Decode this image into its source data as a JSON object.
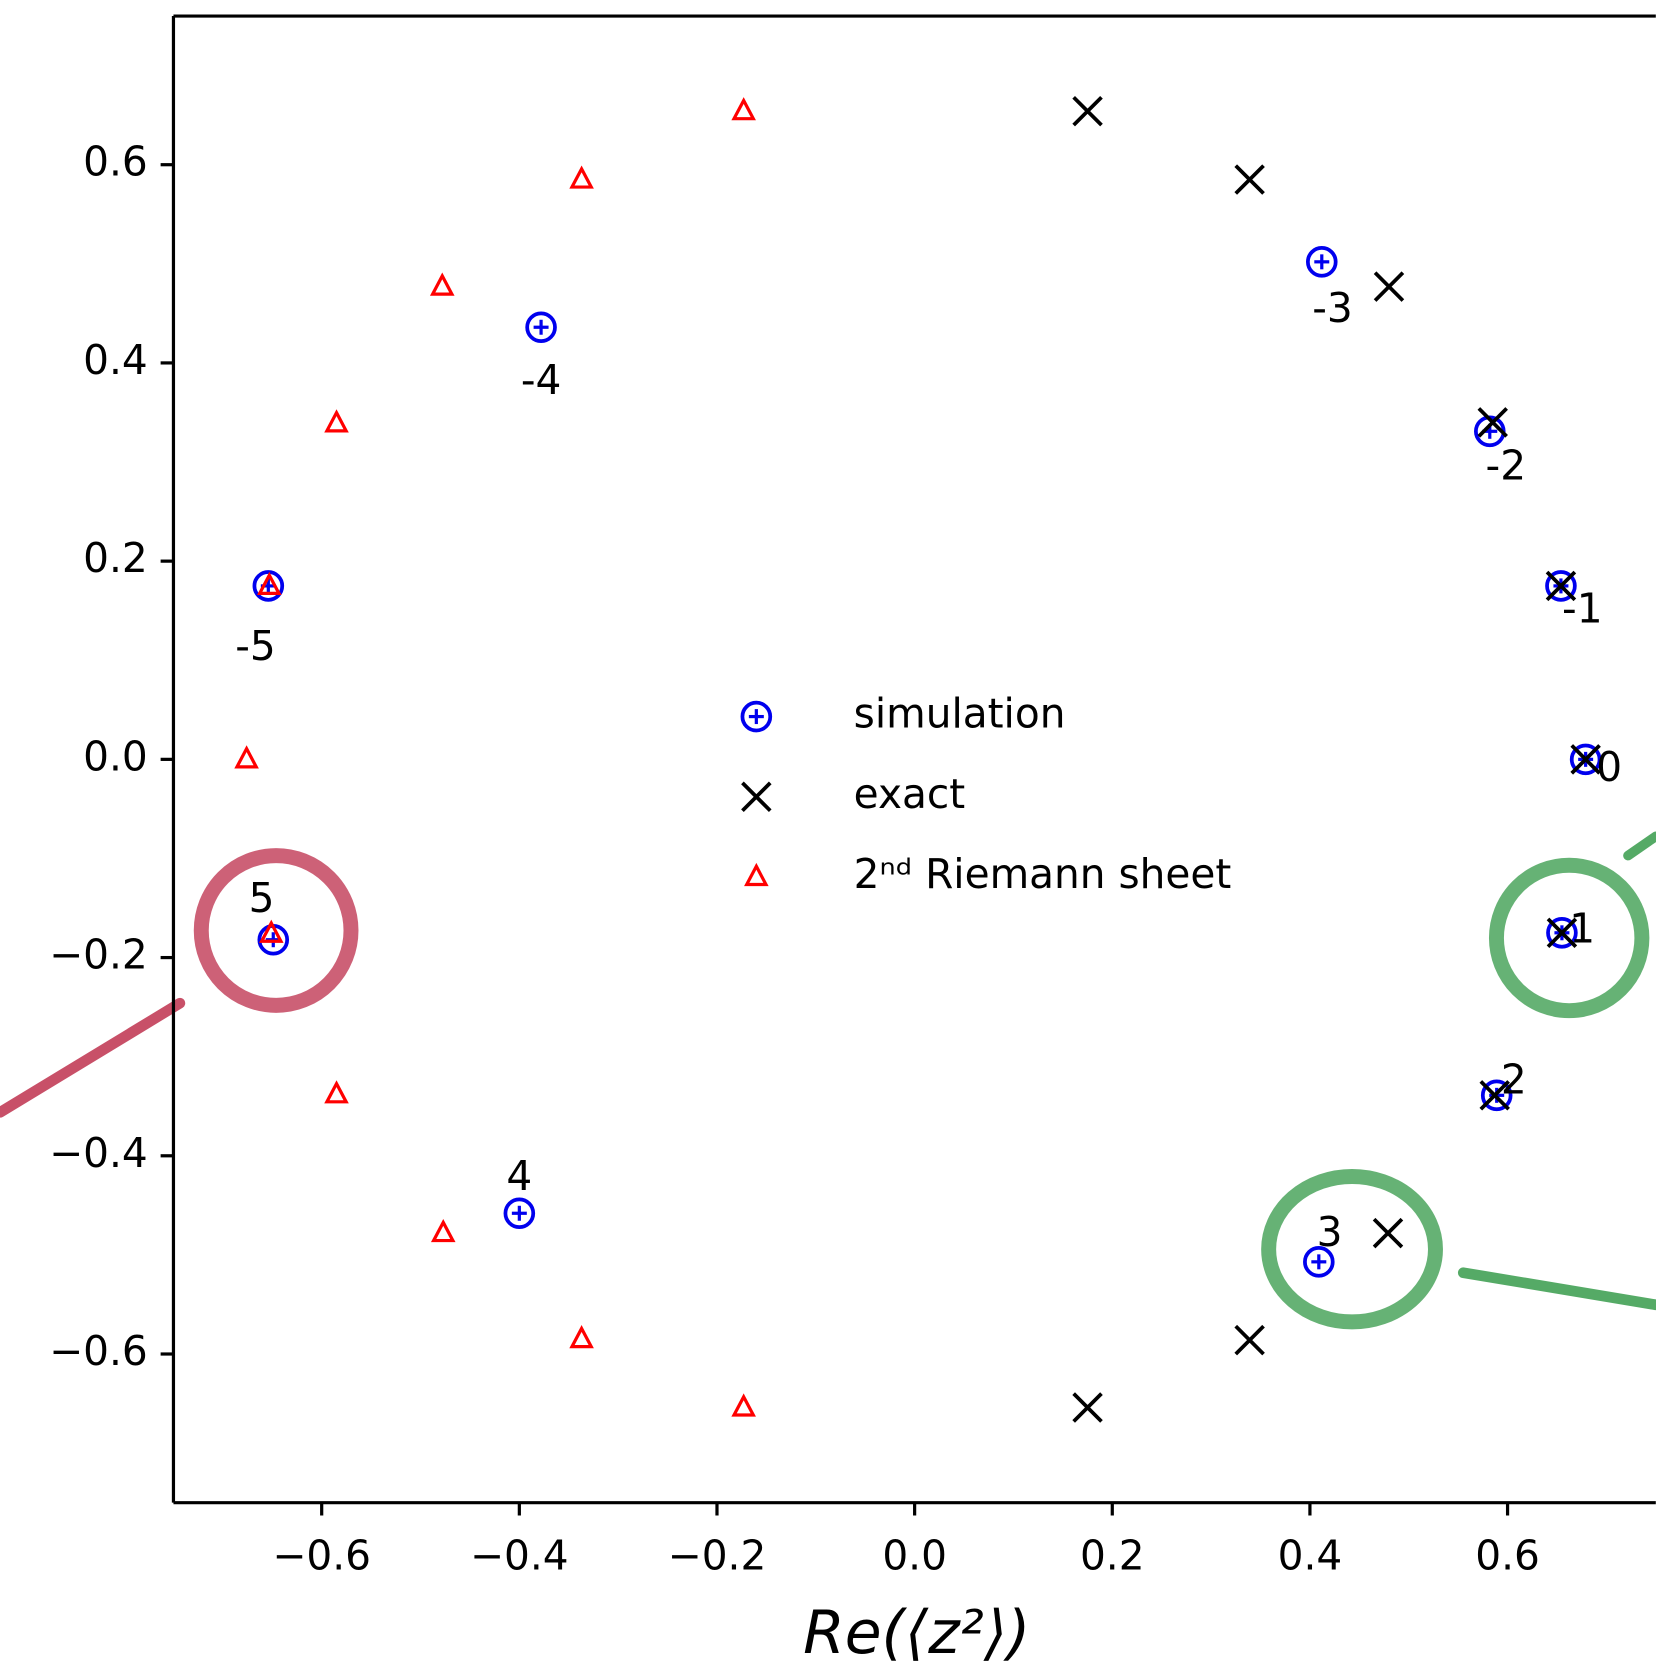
{
  "chart_data": {
    "type": "scatter",
    "xlabel": "Re(⟨z²⟩)",
    "xlim": [
      -0.75,
      0.75
    ],
    "ylim": [
      -0.75,
      0.75
    ],
    "xticks": [
      {
        "value": -0.6,
        "label": "−0.6"
      },
      {
        "value": -0.4,
        "label": "−0.4"
      },
      {
        "value": -0.2,
        "label": "−0.2"
      },
      {
        "value": 0,
        "label": "0.0"
      },
      0.2,
      0.4,
      0.6
    ],
    "yticks": [
      {
        "value": -0.6,
        "label": "−0.6"
      },
      {
        "value": -0.4,
        "label": "−0.4"
      },
      {
        "value": -0.2,
        "label": "−0.2"
      },
      {
        "value": 0,
        "label": "0.0"
      },
      0.2,
      0.4,
      0.6
    ],
    "series": [
      {
        "name": "simulation",
        "color": "#0000ee",
        "marker": "circle-errorbar",
        "x": [
          -0.654,
          -0.378,
          0.412,
          0.582,
          0.654,
          0.679,
          0.655,
          0.589,
          0.409,
          -0.4,
          -0.649
        ],
        "values": [
          0.175,
          0.436,
          0.502,
          0.331,
          0.175,
          0.0,
          -0.175,
          -0.339,
          -0.507,
          -0.458,
          -0.182
        ],
        "labels": [
          "-5",
          "-4",
          "-3",
          "-2",
          "-1",
          "0",
          "1",
          "2",
          "3",
          "4",
          "5"
        ]
      },
      {
        "name": "exact",
        "color": "#000000",
        "marker": "x",
        "x": [
          0.175,
          0.339,
          0.48,
          0.585,
          0.654,
          0.679,
          0.655,
          0.587,
          0.479,
          0.339,
          0.175
        ],
        "values": [
          0.654,
          0.585,
          0.477,
          0.34,
          0.175,
          0.0,
          -0.175,
          -0.339,
          -0.478,
          -0.586,
          -0.654
        ]
      },
      {
        "name": "2ⁿᵈ Riemann sheet",
        "color": "#ff0000",
        "marker": "triangle",
        "x": [
          -0.173,
          -0.337,
          -0.478,
          -0.585,
          -0.653,
          -0.676,
          -0.651,
          -0.585,
          -0.477,
          -0.337,
          -0.173
        ],
        "values": [
          0.654,
          0.585,
          0.477,
          0.339,
          0.175,
          0.0,
          -0.176,
          -0.338,
          -0.478,
          -0.585,
          -0.654
        ]
      }
    ]
  }
}
